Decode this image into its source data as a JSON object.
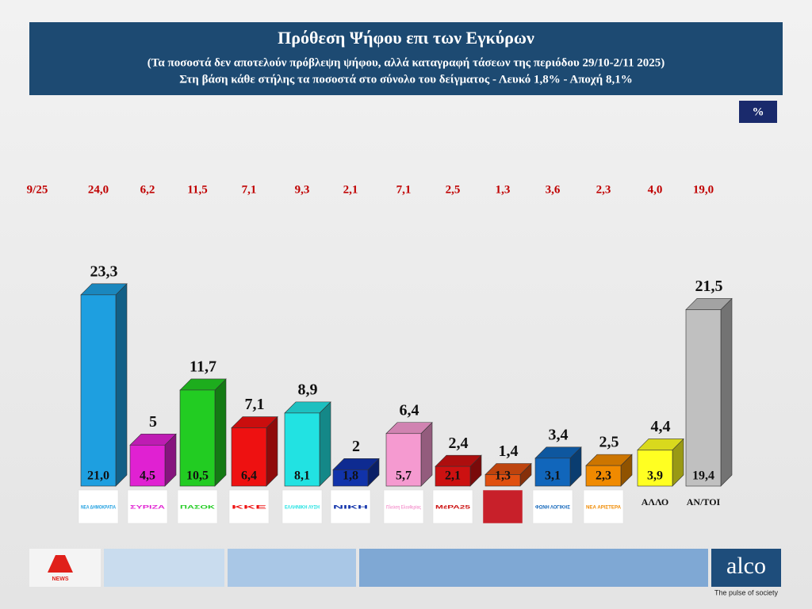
{
  "chart_data": {
    "type": "bar3d",
    "title": "Πρόθεση Ψήφου επι των Εγκύρων",
    "subtitle": "(Τα ποσοστά δεν αποτελούν πρόβλεψη ψήφου, αλλά καταγραφή τάσεων της περιόδου  29/10-2/11 2025)",
    "note": "Στη βάση κάθε στήλης τα ποσοστά στο σύνολο του δείγματος - Λευκό 1,8% - Αποχή 8,1%",
    "unit_badge": "%",
    "categories": [
      "ΝΕΑ ΔΗΜΟΚΡΑΤΙΑ",
      "ΣΥΡΙΖΑ",
      "ΠΑΣΟΚ",
      "ΚΚΕ",
      "ΕΛΛΗΝΙΚΗ ΛΥΣΗ",
      "ΝΙΚΗ",
      "Πλεύση Ελευθερίας",
      "ΜέΡΑ25",
      null,
      "ΦΩΝΗ ΛΟΓΙΚΗΣ",
      "ΝΕΑ ΑΡΙΣΤΕΡΑ",
      "ΑΛΛΟ",
      "ΑΝ/ΤΟΙ"
    ],
    "colors": [
      "#1e9fe0",
      "#e021d2",
      "#22cc22",
      "#ee1111",
      "#22e2e2",
      "#1133aa",
      "#f59ad0",
      "#cc1111",
      "#e05010",
      "#1166bb",
      "#f08a00",
      "#ffff22",
      "#c0c0c0"
    ],
    "series": [
      {
        "name": "Πρόθεση Ψήφου επι των Εγκύρων",
        "values": [
          23.3,
          5,
          11.7,
          7.1,
          8.9,
          2,
          6.4,
          2.4,
          1.4,
          3.4,
          2.5,
          4.4,
          21.5
        ],
        "value_labels": [
          "23,3",
          "5",
          "11,7",
          "7,1",
          "8,9",
          "2",
          "6,4",
          "2,4",
          "1,4",
          "3,4",
          "2,5",
          "4,4",
          "21,5"
        ]
      },
      {
        "name": "σύνολο του δείγματος",
        "values": [
          21.0,
          4.5,
          10.5,
          6.4,
          8.1,
          1.8,
          5.7,
          2.1,
          1.3,
          3.1,
          2.3,
          3.9,
          19.4
        ],
        "value_labels": [
          "21,0",
          "4,5",
          "10,5",
          "6,4",
          "8,1",
          "1,8",
          "5,7",
          "2,1",
          "1,3",
          "3,1",
          "2,3",
          "3,9",
          "19,4"
        ]
      },
      {
        "name": "9/25",
        "values": [
          24.0,
          6.2,
          11.5,
          7.1,
          9.3,
          2.1,
          7.1,
          2.5,
          1.3,
          3.6,
          2.3,
          4.0,
          19.0
        ],
        "value_labels": [
          "24,0",
          "6,2",
          "11,5",
          "7,1",
          "9,3",
          "2,1",
          "7,1",
          "2,5",
          "1,3",
          "3,6",
          "2,3",
          "4,0",
          "19,0"
        ]
      }
    ]
  },
  "footer": {
    "news": "NEWS",
    "brand": "alco",
    "tagline": "The pulse of society"
  }
}
